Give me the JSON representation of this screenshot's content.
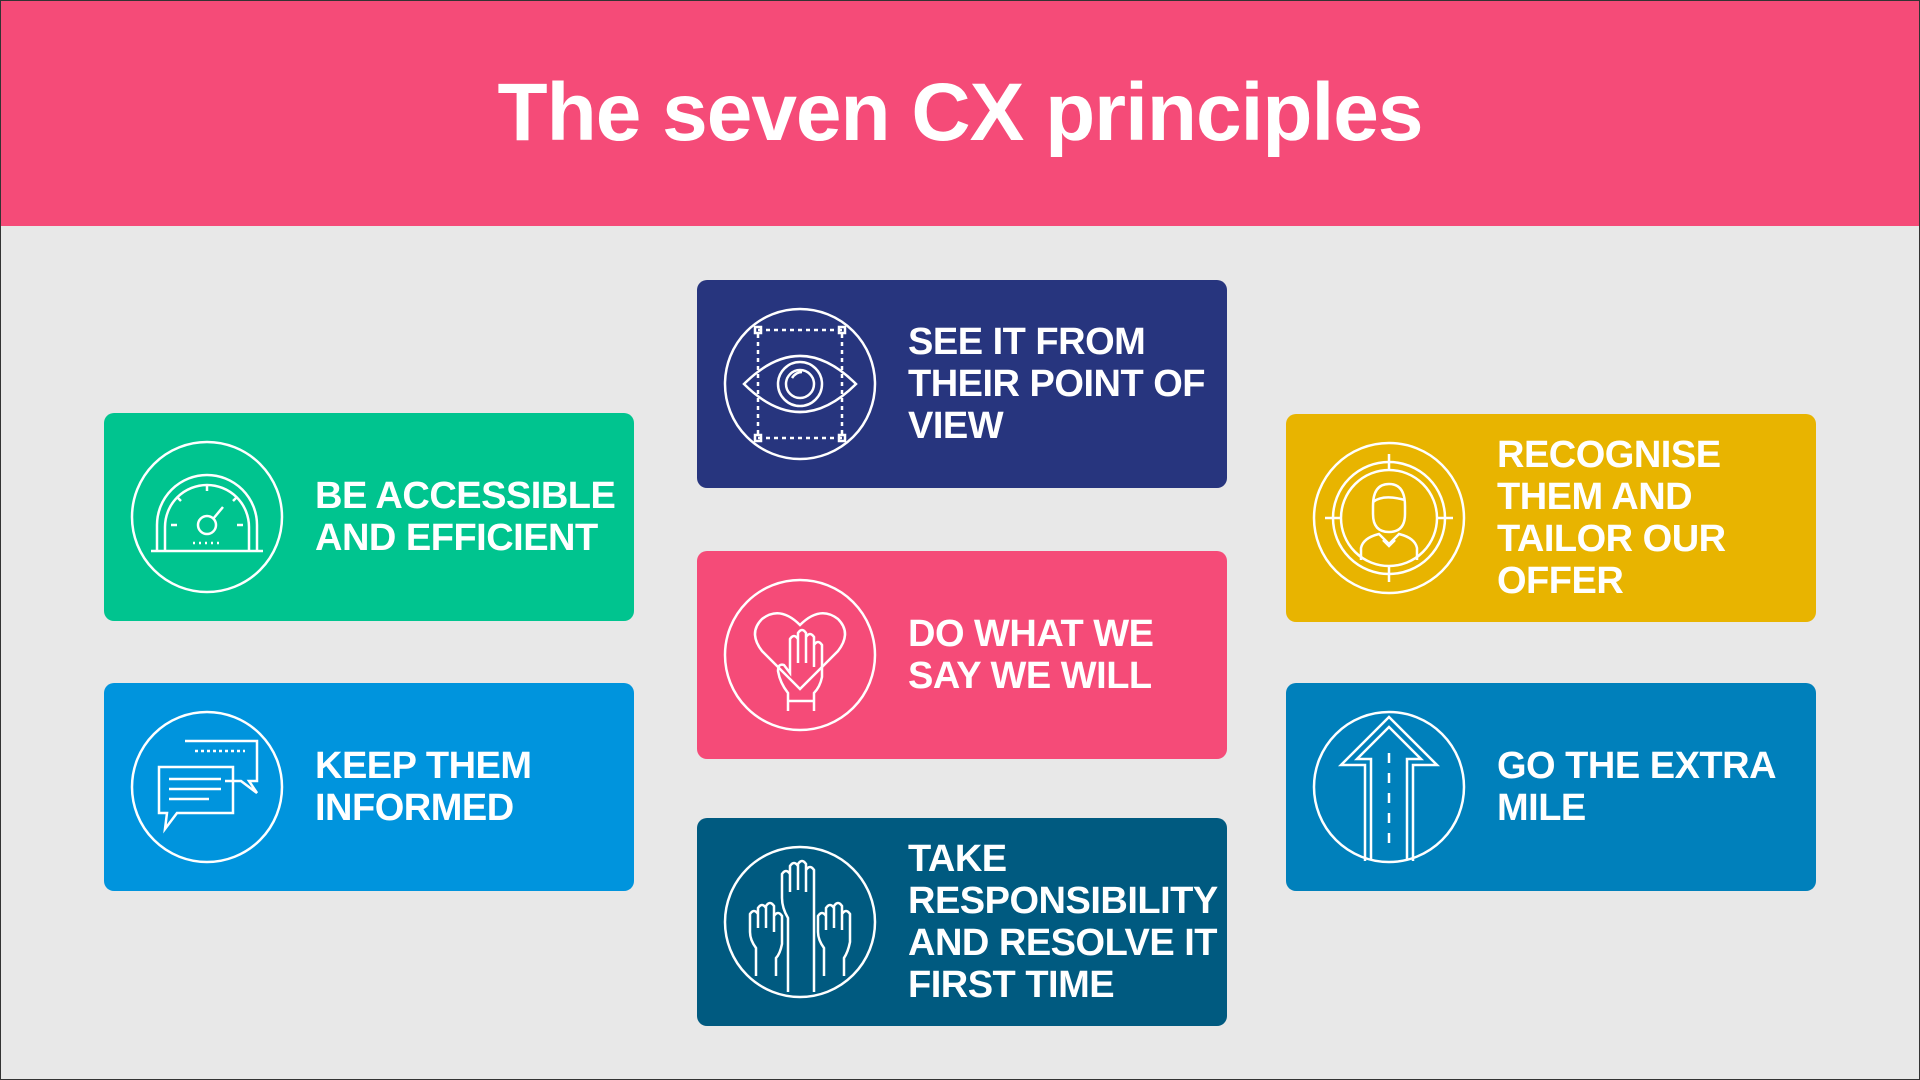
{
  "title": "The seven CX principles",
  "colors": {
    "header": "#f54b78",
    "background": "#e8e8e8"
  },
  "principles": [
    {
      "label": "SEE IT FROM THEIR POINT OF VIEW",
      "color": "#27357e",
      "icon": "eye-icon"
    },
    {
      "label": "BE ACCESSIBLE AND EFFICIENT",
      "color": "#00c48f",
      "icon": "speedometer-icon"
    },
    {
      "label": "RECOGNISE THEM AND TAILOR OUR OFFER",
      "color": "#e8b400",
      "icon": "person-target-icon"
    },
    {
      "label": "DO WHAT WE SAY WE WILL",
      "color": "#f54b78",
      "icon": "heart-hand-icon"
    },
    {
      "label": "KEEP THEM INFORMED",
      "color": "#0094dd",
      "icon": "chat-bubbles-icon"
    },
    {
      "label": "GO THE EXTRA MILE",
      "color": "#0080bb",
      "icon": "arrow-up-road-icon"
    },
    {
      "label": "TAKE RESPONSIBILITY AND RESOLVE IT FIRST TIME",
      "color": "#005a80",
      "icon": "raised-hands-icon"
    }
  ]
}
